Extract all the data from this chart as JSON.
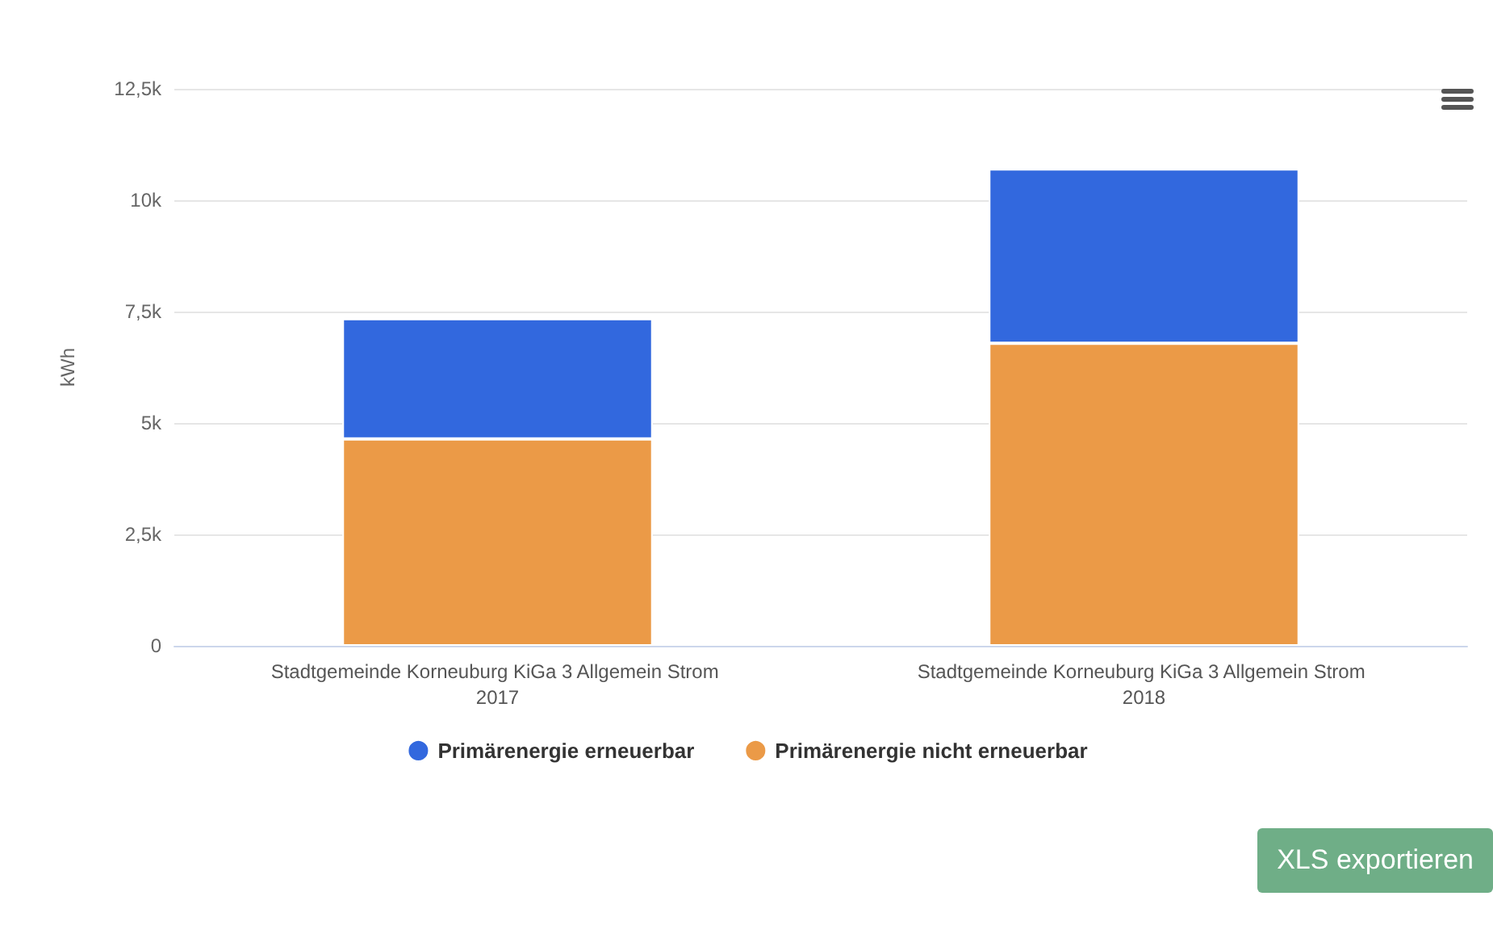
{
  "chart_data": {
    "type": "bar",
    "stacked": true,
    "ylabel": "kWh",
    "categories": [
      "Stadtgemeinde Korneuburg KiGa 3 Allgemein Strom 2017",
      "Stadtgemeinde Korneuburg KiGa 3 Allgemein Strom 2018"
    ],
    "series": [
      {
        "name": "Primärenergie nicht erneuerbar",
        "color": "#eb9a47",
        "values": [
          4640,
          6790
        ]
      },
      {
        "name": "Primärenergie erneuerbar",
        "color": "#3268de",
        "values": [
          2700,
          3910
        ]
      }
    ],
    "ylim": [
      0,
      12500
    ],
    "yticks": [
      0,
      {
        "value": 2500,
        "label": "2,5k"
      },
      {
        "value": 5000,
        "label": "5k"
      },
      {
        "value": 7500,
        "label": "7,5k"
      },
      {
        "value": 10000,
        "label": "10k"
      },
      {
        "value": 12500,
        "label": "12,5k"
      }
    ],
    "grid": "y",
    "legend": "bottom",
    "annotations": [
      "XLS exportieren"
    ]
  }
}
